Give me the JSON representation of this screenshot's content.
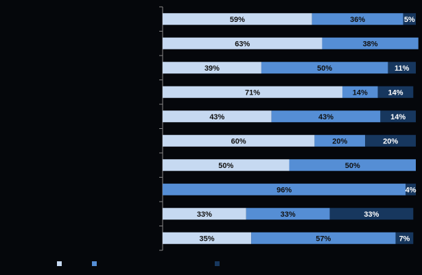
{
  "chart_data": {
    "type": "bar",
    "orientation": "horizontal",
    "stacked": true,
    "percent_stacked": true,
    "title": "",
    "xlabel": "",
    "ylabel": "",
    "xlim": [
      0,
      100
    ],
    "grid": false,
    "legend_position": "bottom-left",
    "categories": [
      "",
      "",
      "",
      "",
      "",
      "",
      "",
      "",
      "",
      ""
    ],
    "series": [
      {
        "color": "#c6d9f1",
        "label_color": "#111111",
        "values": [
          59,
          63,
          39,
          71,
          43,
          60,
          50,
          0,
          33,
          35
        ],
        "labels": [
          "59%",
          "63%",
          "39%",
          "71%",
          "43%",
          "60%",
          "50%",
          "",
          "33%",
          "35%"
        ]
      },
      {
        "color": "#558ed5",
        "label_color": "#111111",
        "values": [
          36,
          38,
          50,
          14,
          43,
          20,
          50,
          96,
          33,
          57
        ],
        "labels": [
          "36%",
          "38%",
          "50%",
          "14%",
          "43%",
          "20%",
          "50%",
          "96%",
          "33%",
          "57%"
        ]
      },
      {
        "color": "#17375e",
        "label_color": "#ffffff",
        "values": [
          5,
          0,
          11,
          14,
          14,
          20,
          0,
          4,
          33,
          7
        ],
        "labels": [
          "5%",
          "",
          "11%",
          "14%",
          "14%",
          "20%",
          "",
          "4%",
          "33%",
          "7%"
        ]
      }
    ]
  },
  "colors": {
    "background": "#05070b",
    "axis": "#8a8a8a"
  }
}
